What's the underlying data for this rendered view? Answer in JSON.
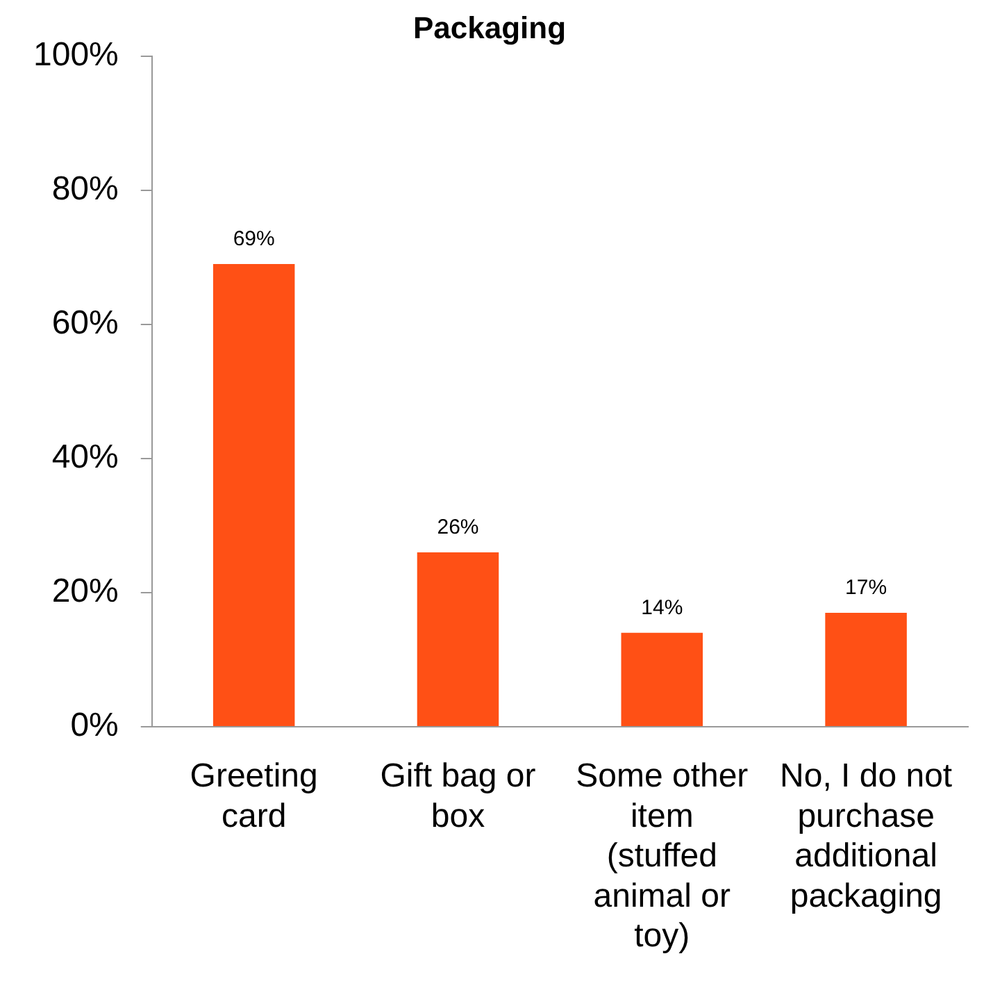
{
  "chart_data": {
    "type": "bar",
    "title": "Packaging",
    "categories": [
      "Greeting card",
      "Gift bag or box",
      "Some other item (stuffed animal or toy)",
      "No, I do not purchase additional packaging"
    ],
    "values": [
      69,
      26,
      14,
      17
    ],
    "color": "#ff5015",
    "value_labels": [
      "69%",
      "26%",
      "14%",
      "17%"
    ],
    "ylim": [
      0,
      100
    ],
    "yticks": [
      {
        "value": 0,
        "label": "0%"
      },
      {
        "value": 20,
        "label": "20%"
      },
      {
        "value": 40,
        "label": "40%"
      },
      {
        "value": 60,
        "label": "60%"
      },
      {
        "value": 80,
        "label": "80%"
      },
      {
        "value": 100,
        "label": "100%"
      }
    ],
    "grid": false
  }
}
